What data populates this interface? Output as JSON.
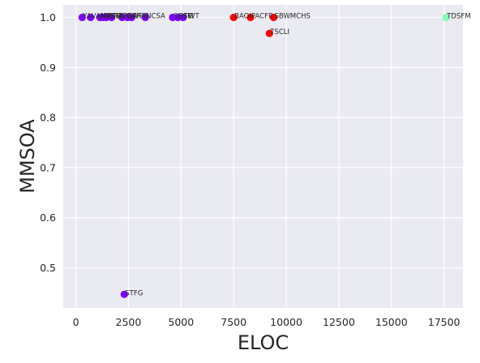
{
  "chart_data": {
    "type": "scatter",
    "title": "",
    "xlabel": "ELOC",
    "ylabel": "MMSOA",
    "xlim": [
      -600,
      18400
    ],
    "ylim": [
      0.42,
      1.025
    ],
    "grid": true,
    "xticks": [
      0,
      2500,
      5000,
      7500,
      10000,
      12500,
      15000,
      17500
    ],
    "xtick_labels": [
      "0",
      "2500",
      "5000",
      "7500",
      "10000",
      "12500",
      "15000",
      "17500"
    ],
    "yticks": [
      0.5,
      0.6,
      0.7,
      0.8,
      0.9,
      1.0
    ],
    "ytick_labels": [
      "0.5",
      "0.6",
      "0.7",
      "0.8",
      "0.9",
      "1.0"
    ],
    "colors": {
      "background": "#eaeaf2",
      "grid": "#ffffff",
      "purple": "#7f00ff",
      "red": "#ff0000",
      "green": "#80ffb4"
    },
    "points": [
      {
        "x": 300,
        "y": 1.0,
        "label": "YA",
        "color": "#7f00ff"
      },
      {
        "x": 700,
        "y": 1.0,
        "label": "VAN",
        "color": "#7f00ff"
      },
      {
        "x": 1150,
        "y": 1.0,
        "label": "NIB",
        "color": "#7f00ff"
      },
      {
        "x": 1300,
        "y": 1.0,
        "label": "SUNB",
        "color": "#7f00ff"
      },
      {
        "x": 1450,
        "y": 1.0,
        "label": "PSM",
        "color": "#7f00ff"
      },
      {
        "x": 1700,
        "y": 1.0,
        "label": "TBCG",
        "color": "#7f00ff"
      },
      {
        "x": 2200,
        "y": 1.0,
        "label": "PDA",
        "color": "#7f00ff"
      },
      {
        "x": 2450,
        "y": 1.0,
        "label": "SFRA",
        "color": "#7f00ff"
      },
      {
        "x": 2650,
        "y": 1.0,
        "label": "WPS",
        "color": "#7f00ff"
      },
      {
        "x": 3300,
        "y": 1.0,
        "label": "NCSA",
        "color": "#7f00ff"
      },
      {
        "x": 4600,
        "y": 1.0,
        "label": "SHSC",
        "color": "#7f00ff"
      },
      {
        "x": 4850,
        "y": 1.0,
        "label": "SSM",
        "color": "#7f00ff"
      },
      {
        "x": 5100,
        "y": 1.0,
        "label": "TWT",
        "color": "#7f00ff"
      },
      {
        "x": 2300,
        "y": 0.447,
        "label": "STFG",
        "color": "#7f00ff"
      },
      {
        "x": 7500,
        "y": 1.0,
        "label": "BAOI",
        "color": "#ff0000"
      },
      {
        "x": 8300,
        "y": 1.0,
        "label": "PACFR",
        "color": "#ff0000"
      },
      {
        "x": 9400,
        "y": 1.0,
        "label": "SBWMCHS",
        "color": "#ff0000"
      },
      {
        "x": 9200,
        "y": 0.968,
        "label": "TSCLI",
        "color": "#ff0000"
      },
      {
        "x": 17600,
        "y": 1.0,
        "label": "TDSFM",
        "color": "#80ffb4"
      }
    ]
  }
}
